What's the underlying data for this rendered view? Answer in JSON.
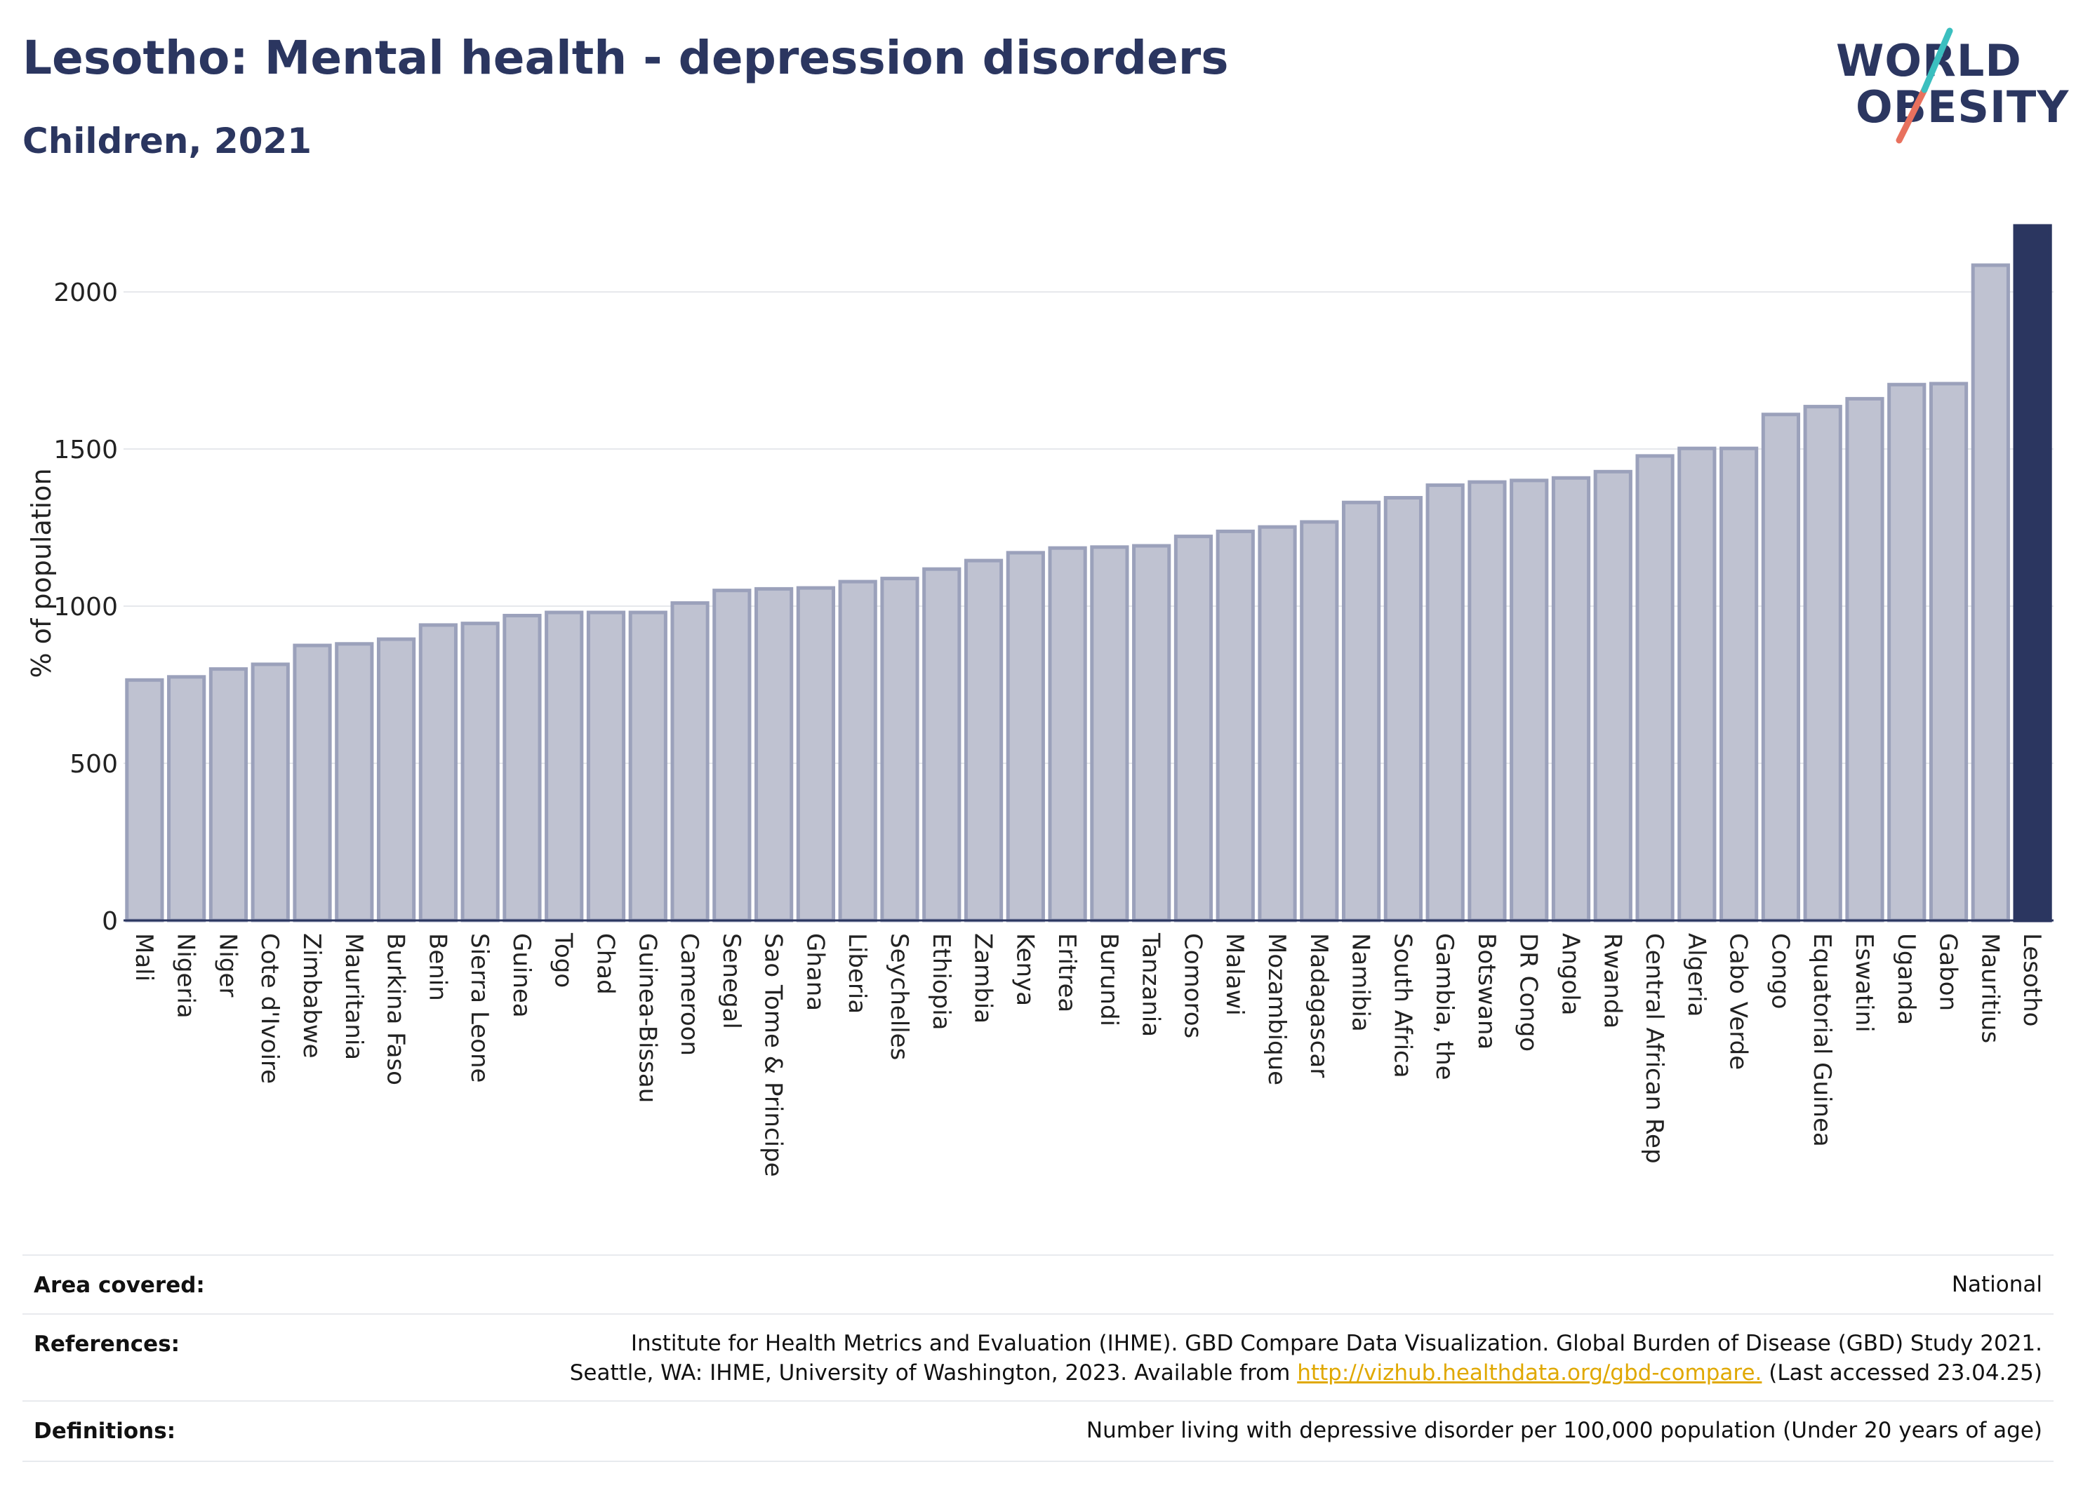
{
  "title": "Lesotho: Mental health - depression disorders",
  "subtitle": "Children, 2021",
  "logo": {
    "line1": "WORLD",
    "line2": "OBESITY",
    "accent_colors": [
      "#3bbfbf",
      "#e8715e"
    ]
  },
  "colors": {
    "bar": "#bfc2d1",
    "bar_stroke": "#9ba1bb",
    "highlight": "#2b3660",
    "grid": "#e6e8ec",
    "axis": "#2b3660",
    "link": "#e0a800"
  },
  "chart_data": {
    "type": "bar",
    "ylabel": "% of population",
    "ylim": [
      0,
      2210
    ],
    "yticks": [
      0,
      500,
      1000,
      1500,
      2000
    ],
    "grid": true,
    "highlight": "Lesotho",
    "categories": [
      "Mali",
      "Nigeria",
      "Niger",
      "Cote d'Ivoire",
      "Zimbabwe",
      "Mauritania",
      "Burkina Faso",
      "Benin",
      "Sierra Leone",
      "Guinea",
      "Togo",
      "Chad",
      "Guinea-Bissau",
      "Cameroon",
      "Senegal",
      "Sao Tome & Principe",
      "Ghana",
      "Liberia",
      "Seychelles",
      "Ethiopia",
      "Zambia",
      "Kenya",
      "Eritrea",
      "Burundi",
      "Tanzania",
      "Comoros",
      "Malawi",
      "Mozambique",
      "Madagascar",
      "Namibia",
      "South Africa",
      "Gambia, the",
      "Botswana",
      "DR Congo",
      "Angola",
      "Rwanda",
      "Central African Rep",
      "Algeria",
      "Cabo Verde",
      "Congo",
      "Equatorial Guinea",
      "Eswatini",
      "Uganda",
      "Gabon",
      "Mauritius",
      "Lesotho"
    ],
    "values": [
      765,
      775,
      800,
      815,
      875,
      880,
      895,
      940,
      945,
      970,
      980,
      980,
      980,
      1010,
      1050,
      1055,
      1058,
      1078,
      1088,
      1118,
      1145,
      1170,
      1185,
      1188,
      1192,
      1222,
      1238,
      1252,
      1268,
      1330,
      1345,
      1385,
      1395,
      1400,
      1408,
      1428,
      1478,
      1502,
      1502,
      1610,
      1635,
      1660,
      1705,
      1708,
      2085,
      2210
    ]
  },
  "footer": {
    "area_label": "Area covered:",
    "area_value": "National",
    "references_label": "References:",
    "references_line1": "Institute for Health Metrics and Evaluation (IHME). GBD Compare Data Visualization. Global Burden of Disease (GBD) Study 2021.",
    "references_line2_pre": "Seattle, WA: IHME, University of Washington, 2023. Available from ",
    "references_link": "http://vizhub.healthdata.org/gbd-compare.",
    "references_line2_post": " (Last accessed 23.04.25)",
    "definitions_label": "Definitions:",
    "definitions_value": "Number living with depressive disorder per 100,000 population (Under 20 years of age)"
  }
}
